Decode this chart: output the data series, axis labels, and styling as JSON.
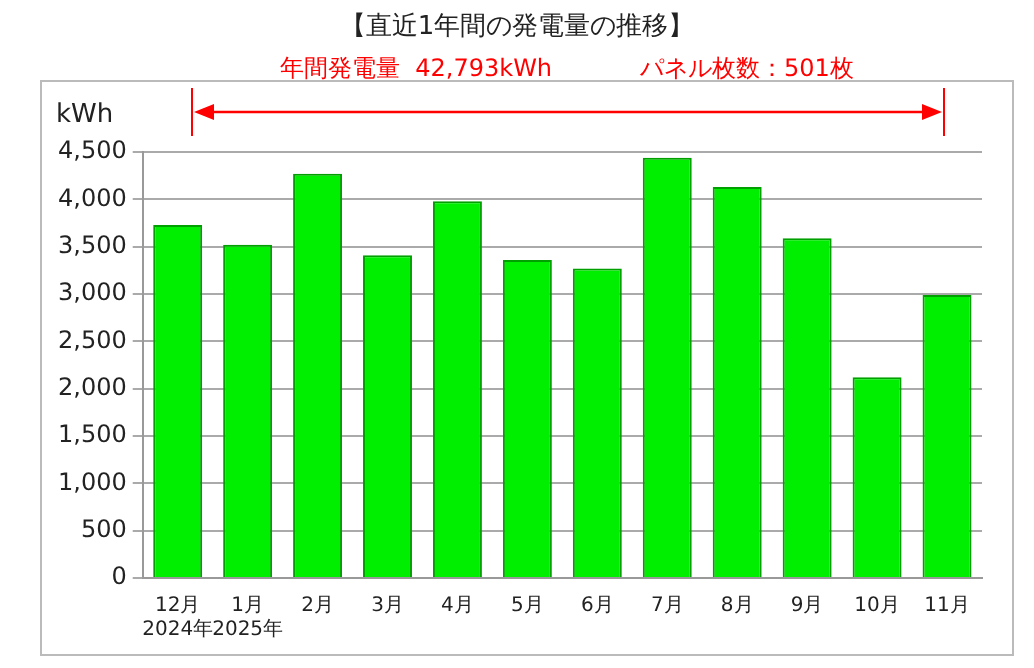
{
  "chart_data": {
    "type": "bar",
    "title": "【直近1年間の発電量の推移】",
    "ylabel": "kWh",
    "categories": [
      "12月\n2024年",
      "1月\n2025年",
      "2月",
      "3月",
      "4月",
      "5月",
      "6月",
      "7月",
      "8月",
      "9月",
      "10月",
      "11月"
    ],
    "values": [
      3730,
      3520,
      4270,
      3410,
      3980,
      3360,
      3270,
      4440,
      4130,
      3590,
      2120,
      2990
    ],
    "color": "#00ee00",
    "ylim": [
      0,
      4500
    ],
    "yticks": [
      {
        "value": 0,
        "label": "0"
      },
      {
        "value": 500,
        "label": "500"
      },
      {
        "value": 1000,
        "label": "1,000"
      },
      {
        "value": 1500,
        "label": "1,500"
      },
      {
        "value": 2000,
        "label": "2,000"
      },
      {
        "value": 2500,
        "label": "2,500"
      },
      {
        "value": 3000,
        "label": "3,000"
      },
      {
        "value": 3500,
        "label": "3,500"
      },
      {
        "value": 4000,
        "label": "4,000"
      },
      {
        "value": 4500,
        "label": "4,500"
      }
    ],
    "grid": "y",
    "annotations": [
      "年間発電量  42,793kWh",
      "パネル枚数：501枚"
    ]
  }
}
